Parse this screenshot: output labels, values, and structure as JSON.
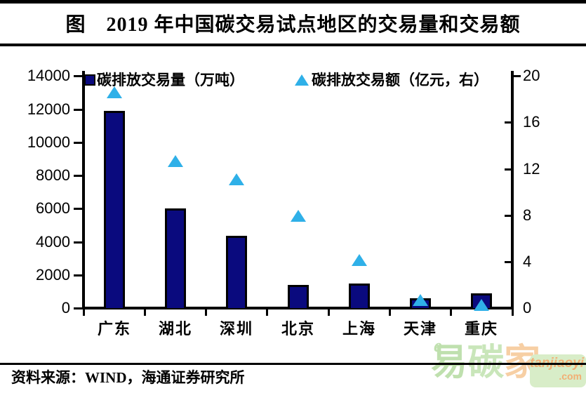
{
  "title": "图　2019 年中国碳交易试点地区的交易量和交易额",
  "legend": {
    "volume_label": "碳排放交易量（万吨）",
    "amount_label": "碳排放交易额（亿元，右）"
  },
  "colors": {
    "bar_fill": "#0A0A7E",
    "triangle_fill": "#2FB0E8",
    "axis": "#000000",
    "watermark_green": "#bfe0ae",
    "watermark_orange": "#f7cfa4"
  },
  "chart_data": {
    "type": "bar",
    "categories": [
      "广东",
      "湖北",
      "深圳",
      "北京",
      "上海",
      "天津",
      "重庆"
    ],
    "series": [
      {
        "name": "碳排放交易量（万吨）",
        "type": "bar",
        "axis": "left",
        "color": "#0A0A7E",
        "values": [
          11900,
          6000,
          4350,
          1400,
          1500,
          600,
          900
        ]
      },
      {
        "name": "碳排放交易额（亿元，右）",
        "type": "scatter-triangle",
        "axis": "right",
        "color": "#2FB0E8",
        "values": [
          18.6,
          12.7,
          11.1,
          8.0,
          4.2,
          0.7,
          0.3
        ]
      }
    ],
    "title": "图 2019 年中国碳交易试点地区的交易量和交易额",
    "xlabel": "",
    "ylabel_left": "万吨",
    "ylabel_right": "亿元",
    "left_axis": {
      "ticks": [
        0,
        2000,
        4000,
        6000,
        8000,
        10000,
        12000,
        14000
      ],
      "range": [
        0,
        14000
      ]
    },
    "right_axis": {
      "ticks": [
        0,
        4,
        8,
        12,
        16,
        20
      ],
      "range": [
        0,
        20
      ]
    },
    "grid": false,
    "legend_position": "top"
  },
  "footer": {
    "source": "资料来源：WIND，海通证券研究所"
  },
  "watermark": {
    "chars": [
      {
        "t": "易",
        "c": "#bfe0ae"
      },
      {
        "t": "碳",
        "c": "#c9e6ba"
      },
      {
        "t": "家",
        "c": "#f7cfa4"
      }
    ],
    "e_mark": "e",
    "badge_line1": "tanjiaoyi",
    "badge_line2": ".com"
  }
}
